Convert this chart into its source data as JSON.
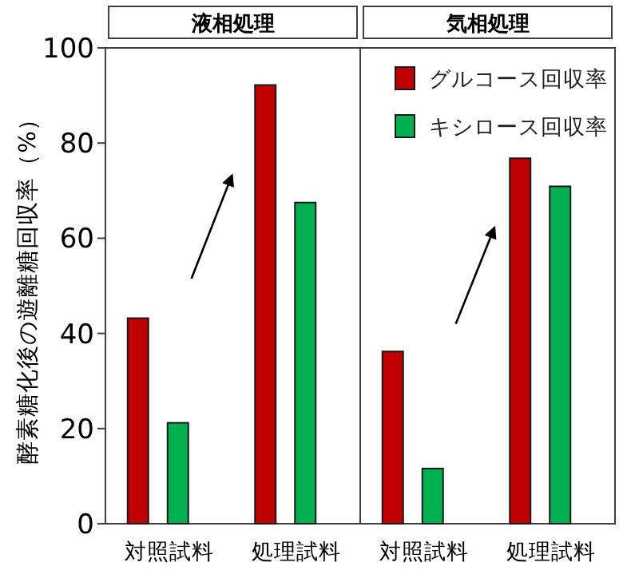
{
  "chart_data": [
    {
      "type": "bar",
      "title": "液相処理",
      "ylabel": "酵素糖化後の遊離糖回収率（%）",
      "categories": [
        "対照試料",
        "処理試料"
      ],
      "series": [
        {
          "color": "#c00000",
          "values": [
            43.2,
            92.2
          ]
        },
        {
          "color": "#00b050",
          "values": [
            21.2,
            67.5
          ]
        }
      ],
      "ylim": [
        0,
        100
      ],
      "yticks": [
        0,
        20,
        40,
        60,
        80,
        100
      ]
    },
    {
      "type": "bar",
      "title": "気相処理",
      "categories": [
        "対照試料",
        "処理試料"
      ],
      "series": [
        {
          "name": "グルコース回収率",
          "color": "#c00000",
          "values": [
            36.2,
            76.8
          ]
        },
        {
          "name": "キシロース回収率",
          "color": "#00b050",
          "values": [
            11.6,
            70.9
          ]
        }
      ],
      "ylim": [
        0,
        100
      ],
      "yticks": [
        0,
        20,
        40,
        60,
        80,
        100
      ],
      "tick_labels": "x",
      "legend": "top right"
    }
  ]
}
